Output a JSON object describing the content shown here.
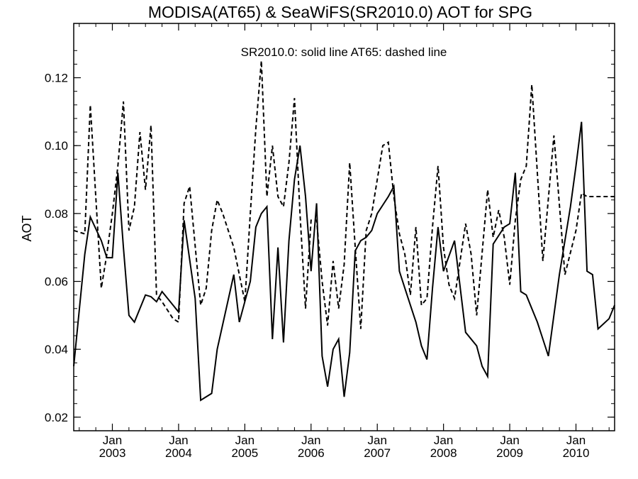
{
  "chart_data": {
    "type": "line",
    "title": "MODISA(AT65) & SeaWiFS(SR2010.0)  AOT for SPG",
    "annotation": "SR2010.0: solid line   AT65: dashed line",
    "xlabel": "",
    "ylabel": "AOT",
    "xlim": [
      "2002-06",
      "2010-08"
    ],
    "ylim": [
      0.016,
      0.136
    ],
    "yticks": [
      0.02,
      0.04,
      0.06,
      0.08,
      0.1,
      0.12
    ],
    "ytick_labels": [
      "0.02",
      "0.04",
      "0.06",
      "0.08",
      "0.10",
      "0.12"
    ],
    "xtick_months": [
      "2003-01",
      "2004-01",
      "2005-01",
      "2006-01",
      "2007-01",
      "2008-01",
      "2009-01",
      "2010-01"
    ],
    "xtick_labels": [
      {
        "month": "Jan",
        "year": "2003"
      },
      {
        "month": "Jan",
        "year": "2004"
      },
      {
        "month": "Jan",
        "year": "2005"
      },
      {
        "month": "Jan",
        "year": "2006"
      },
      {
        "month": "Jan",
        "year": "2007"
      },
      {
        "month": "Jan",
        "year": "2008"
      },
      {
        "month": "Jan",
        "year": "2009"
      },
      {
        "month": "Jan",
        "year": "2010"
      }
    ],
    "series": [
      {
        "style": "solid",
        "x": [
          "2002-06",
          "2002-08",
          "2002-09",
          "2002-11",
          "2002-12",
          "2003-01",
          "2003-02",
          "2003-03",
          "2003-04",
          "2003-05",
          "2003-06",
          "2003-07",
          "2003-08",
          "2003-09",
          "2003-10",
          "2003-12",
          "2004-01",
          "2004-02",
          "2004-04",
          "2004-05",
          "2004-07",
          "2004-08",
          "2004-11",
          "2004-12",
          "2005-02",
          "2005-03",
          "2005-04",
          "2005-05",
          "2005-06",
          "2005-07",
          "2005-08",
          "2005-09",
          "2005-10",
          "2005-11",
          "2005-12",
          "2006-01",
          "2006-02",
          "2006-03",
          "2006-04",
          "2006-05",
          "2006-06",
          "2006-07",
          "2006-08",
          "2006-09",
          "2006-10",
          "2006-11",
          "2006-12",
          "2007-01",
          "2007-03",
          "2007-04",
          "2007-05",
          "2007-06",
          "2007-08",
          "2007-09",
          "2007-10",
          "2007-11",
          "2007-12",
          "2008-01",
          "2008-03",
          "2008-05",
          "2008-07",
          "2008-08",
          "2008-09",
          "2008-10",
          "2008-12",
          "2009-01",
          "2009-02",
          "2009-03",
          "2009-04",
          "2009-06",
          "2009-08",
          "2009-10",
          "2009-12",
          "2010-01",
          "2010-02",
          "2010-03",
          "2010-04",
          "2010-05",
          "2010-07",
          "2010-08"
        ],
        "y": [
          0.035,
          0.068,
          0.079,
          0.072,
          0.067,
          0.067,
          0.092,
          0.07,
          0.05,
          0.048,
          0.052,
          0.056,
          0.0555,
          0.054,
          0.057,
          0.053,
          0.051,
          0.078,
          0.055,
          0.025,
          0.027,
          0.04,
          0.062,
          0.048,
          0.06,
          0.076,
          0.08,
          0.082,
          0.043,
          0.07,
          0.042,
          0.072,
          0.09,
          0.1,
          0.085,
          0.063,
          0.083,
          0.038,
          0.029,
          0.04,
          0.043,
          0.026,
          0.039,
          0.069,
          0.072,
          0.073,
          0.075,
          0.08,
          0.085,
          0.088,
          0.063,
          0.058,
          0.048,
          0.041,
          0.037,
          0.058,
          0.076,
          0.063,
          0.072,
          0.045,
          0.041,
          0.035,
          0.032,
          0.071,
          0.076,
          0.077,
          0.092,
          0.057,
          0.056,
          0.048,
          0.038,
          0.062,
          0.082,
          0.094,
          0.107,
          0.063,
          0.062,
          0.046,
          0.049,
          0.053
        ]
      },
      {
        "style": "dashed",
        "x": [
          "2002-06",
          "2002-08",
          "2002-09",
          "2002-10",
          "2002-11",
          "2002-12",
          "2003-01",
          "2003-02",
          "2003-03",
          "2003-04",
          "2003-05",
          "2003-06",
          "2003-07",
          "2003-08",
          "2003-09",
          "2003-10",
          "2003-12",
          "2004-01",
          "2004-02",
          "2004-03",
          "2004-05",
          "2004-06",
          "2004-07",
          "2004-08",
          "2004-09",
          "2004-11",
          "2005-01",
          "2005-02",
          "2005-03",
          "2005-04",
          "2005-05",
          "2005-06",
          "2005-07",
          "2005-08",
          "2005-09",
          "2005-10",
          "2005-11",
          "2005-12",
          "2006-01",
          "2006-02",
          "2006-03",
          "2006-04",
          "2006-05",
          "2006-06",
          "2006-07",
          "2006-08",
          "2006-09",
          "2006-10",
          "2006-11",
          "2006-12",
          "2007-01",
          "2007-02",
          "2007-03",
          "2007-04",
          "2007-05",
          "2007-06",
          "2007-07",
          "2007-08",
          "2007-09",
          "2007-10",
          "2007-11",
          "2007-12",
          "2008-01",
          "2008-02",
          "2008-03",
          "2008-05",
          "2008-06",
          "2008-07",
          "2008-09",
          "2008-10",
          "2008-11",
          "2008-12",
          "2009-01",
          "2009-02",
          "2009-03",
          "2009-04",
          "2009-05",
          "2009-07",
          "2009-09",
          "2009-11",
          "2010-01",
          "2010-02",
          "2010-03",
          "2010-04",
          "2010-05",
          "2010-06",
          "2010-07",
          "2010-08"
        ],
        "y": [
          0.075,
          0.074,
          0.112,
          0.085,
          0.058,
          0.068,
          0.08,
          0.094,
          0.113,
          0.075,
          0.082,
          0.104,
          0.087,
          0.106,
          0.056,
          0.054,
          0.049,
          0.048,
          0.083,
          0.088,
          0.053,
          0.058,
          0.075,
          0.084,
          0.08,
          0.07,
          0.054,
          0.08,
          0.105,
          0.125,
          0.085,
          0.1,
          0.085,
          0.082,
          0.095,
          0.114,
          0.08,
          0.052,
          0.078,
          0.078,
          0.06,
          0.047,
          0.066,
          0.052,
          0.065,
          0.095,
          0.07,
          0.046,
          0.075,
          0.08,
          0.09,
          0.1,
          0.101,
          0.085,
          0.074,
          0.068,
          0.056,
          0.076,
          0.053,
          0.055,
          0.076,
          0.094,
          0.07,
          0.059,
          0.055,
          0.077,
          0.068,
          0.05,
          0.087,
          0.073,
          0.081,
          0.073,
          0.059,
          0.078,
          0.09,
          0.094,
          0.118,
          0.066,
          0.103,
          0.062,
          0.075,
          0.086,
          0.085,
          0.085,
          0.085,
          0.085,
          0.085,
          0.085
        ]
      }
    ]
  }
}
